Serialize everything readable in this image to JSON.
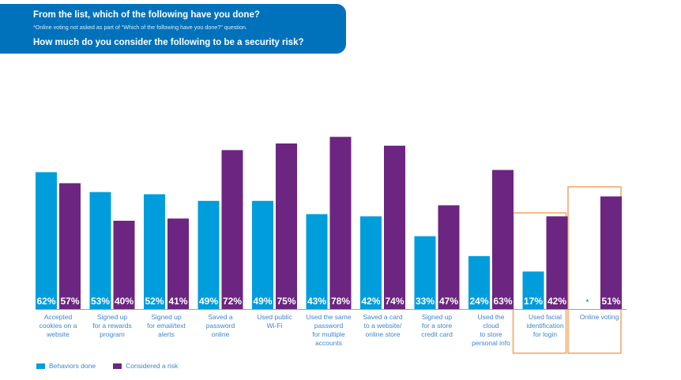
{
  "header": {
    "question_done": "From the list, which of the following have you done?",
    "note": "*Online voting not asked as part of “Which of the following have you done?” question.",
    "question_risk": "How much do you consider the following to be a security risk?"
  },
  "colors": {
    "header_bg": "#0072bc",
    "behaviors_done": "#009ddc",
    "considered_risk": "#6c2580",
    "highlight_box": "#f5a35c",
    "label_text": "#3f86c8"
  },
  "chart_data": {
    "type": "bar",
    "title": "From the list, which of the following have you done? / How much do you consider the following to be a security risk?",
    "xlabel": "",
    "ylabel": "",
    "ylim": [
      0,
      100
    ],
    "grid": false,
    "legend_position": "bottom-left",
    "categories": [
      [
        "Accepted",
        "cookies on a",
        "website"
      ],
      [
        "Signed up",
        "for a rewards",
        "program"
      ],
      [
        "Signed up",
        "for email/text",
        "alerts"
      ],
      [
        "Saved a",
        "password",
        "online"
      ],
      [
        "Used public",
        "Wi-Fi"
      ],
      [
        "Used the same",
        "password",
        "for multiple",
        "accounts"
      ],
      [
        "Saved a card",
        "to a website/",
        "online store"
      ],
      [
        "Signed up",
        "for a store",
        "credit card"
      ],
      [
        "Used the",
        "cloud",
        "to store",
        "personal info"
      ],
      [
        "Used facial",
        "identification",
        "for login"
      ],
      [
        "Online voting"
      ]
    ],
    "series": [
      {
        "name": "Behaviors done",
        "values": [
          62,
          53,
          52,
          49,
          49,
          43,
          42,
          33,
          24,
          17,
          null
        ],
        "labels": [
          "62%",
          "53%",
          "52%",
          "49%",
          "49%",
          "43%",
          "42%",
          "33%",
          "24%",
          "17%",
          "*"
        ]
      },
      {
        "name": "Considered a risk",
        "values": [
          57,
          40,
          41,
          72,
          75,
          78,
          74,
          47,
          63,
          42,
          51
        ],
        "labels": [
          "57%",
          "40%",
          "41%",
          "72%",
          "75%",
          "78%",
          "74%",
          "47%",
          "63%",
          "42%",
          "51%"
        ]
      }
    ],
    "highlighted_categories": [
      "Used facial identification for login",
      "Online voting"
    ]
  },
  "legend": {
    "items": [
      {
        "label": "Behaviors done"
      },
      {
        "label": "Considered a risk"
      }
    ]
  }
}
